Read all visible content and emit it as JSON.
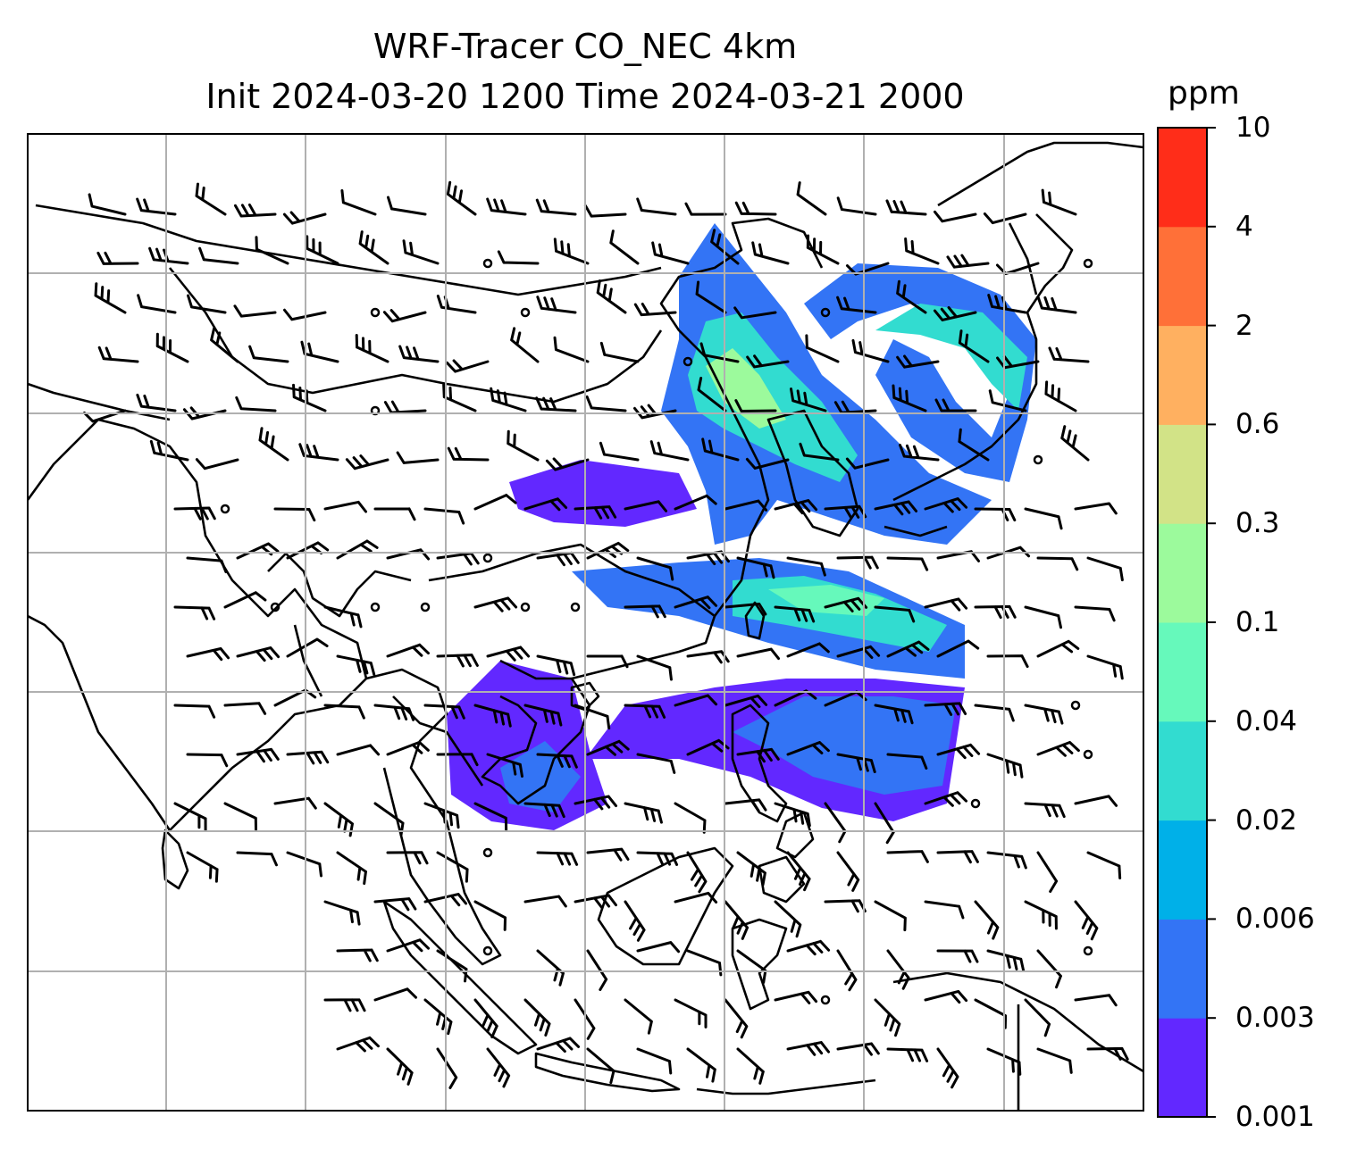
{
  "title": {
    "line1": "WRF-Tracer CO_NEC 4km",
    "line2": "Init 2024-03-20 1200 Time 2024-03-21 2000"
  },
  "colorbar": {
    "unit": "ppm",
    "levels": [
      "0.001",
      "0.003",
      "0.006",
      "0.02",
      "0.04",
      "0.1",
      "0.3",
      "0.6",
      "2",
      "4",
      "10"
    ],
    "colors": [
      "#6228ff",
      "#3374f5",
      "#00b0e8",
      "#32dcd0",
      "#66f9bb",
      "#9cfa9c",
      "#d2e387",
      "#ffb060",
      "#ff7038",
      "#ff2d19"
    ]
  },
  "map": {
    "gridlines": true,
    "features": [
      "coastlines",
      "country borders",
      "wind barbs",
      "CO tracer concentration"
    ]
  }
}
